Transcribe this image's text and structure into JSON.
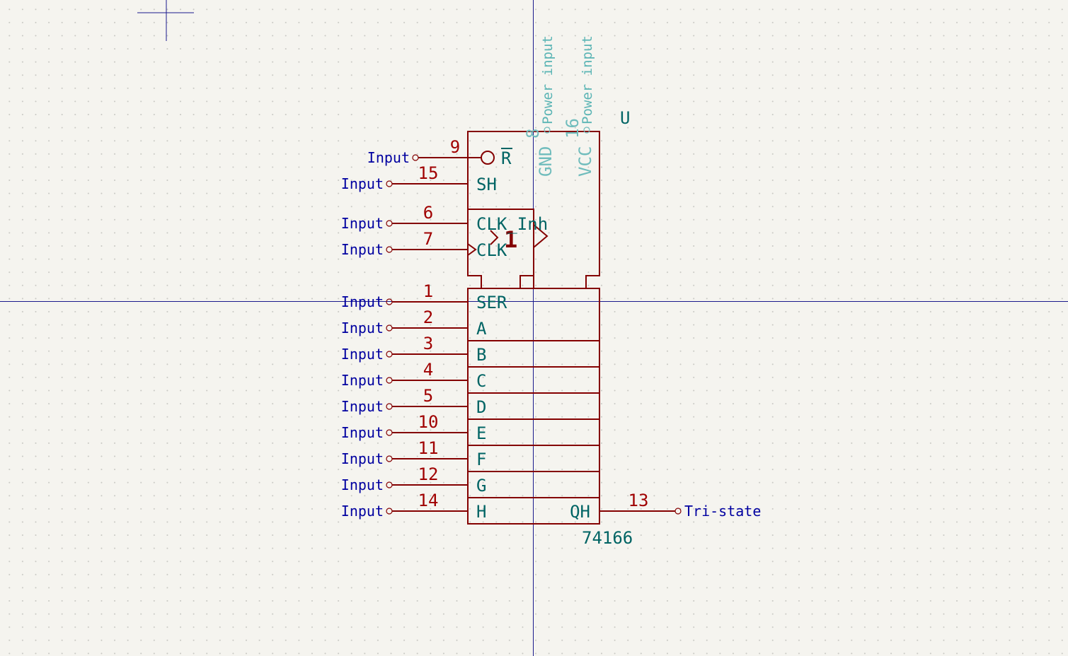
{
  "component": {
    "reference": "U",
    "value": "74166"
  },
  "left_pins": [
    {
      "number": "9",
      "name": "R",
      "type": "Input",
      "inverted": true
    },
    {
      "number": "15",
      "name": "SH",
      "type": "Input"
    },
    {
      "number": "6",
      "name": "CLK_Inh",
      "type": "Input"
    },
    {
      "number": "7",
      "name": "CLK",
      "type": "Input",
      "clock": true
    },
    {
      "number": "1",
      "name": "SER",
      "type": "Input"
    },
    {
      "number": "2",
      "name": "A",
      "type": "Input"
    },
    {
      "number": "3",
      "name": "B",
      "type": "Input"
    },
    {
      "number": "4",
      "name": "C",
      "type": "Input"
    },
    {
      "number": "5",
      "name": "D",
      "type": "Input"
    },
    {
      "number": "10",
      "name": "E",
      "type": "Input"
    },
    {
      "number": "11",
      "name": "F",
      "type": "Input"
    },
    {
      "number": "12",
      "name": "G",
      "type": "Input"
    },
    {
      "number": "14",
      "name": "H",
      "type": "Input"
    }
  ],
  "right_pins": [
    {
      "number": "13",
      "name": "QH",
      "type": "Tri-state"
    }
  ],
  "power_pins": [
    {
      "number": "8",
      "name": "GND",
      "type": "Power input"
    },
    {
      "number": "16",
      "name": "VCC",
      "type": "Power input"
    }
  ],
  "control_block": {
    "clock_label": "1"
  }
}
